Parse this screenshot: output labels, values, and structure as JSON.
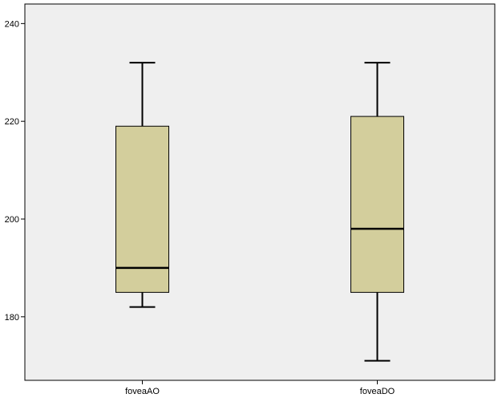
{
  "chart_data": {
    "type": "boxplot",
    "title": "",
    "xlabel": "",
    "ylabel": "",
    "ylim": [
      167,
      244
    ],
    "yticks": [
      180,
      200,
      220,
      240
    ],
    "grid": false,
    "legend": "none",
    "colors": {
      "plot_background": "#efefef",
      "box_fill": "#d3ce9c",
      "stroke": "#000000"
    },
    "categories": [
      "foveaAO",
      "foveaDO"
    ],
    "boxes": [
      {
        "label": "foveaAO",
        "whisker_low": 182,
        "q1": 185,
        "median": 190,
        "q3": 219,
        "whisker_high": 232
      },
      {
        "label": "foveaDO",
        "whisker_low": 171,
        "q1": 185,
        "median": 198,
        "q3": 221,
        "whisker_high": 232
      }
    ]
  }
}
